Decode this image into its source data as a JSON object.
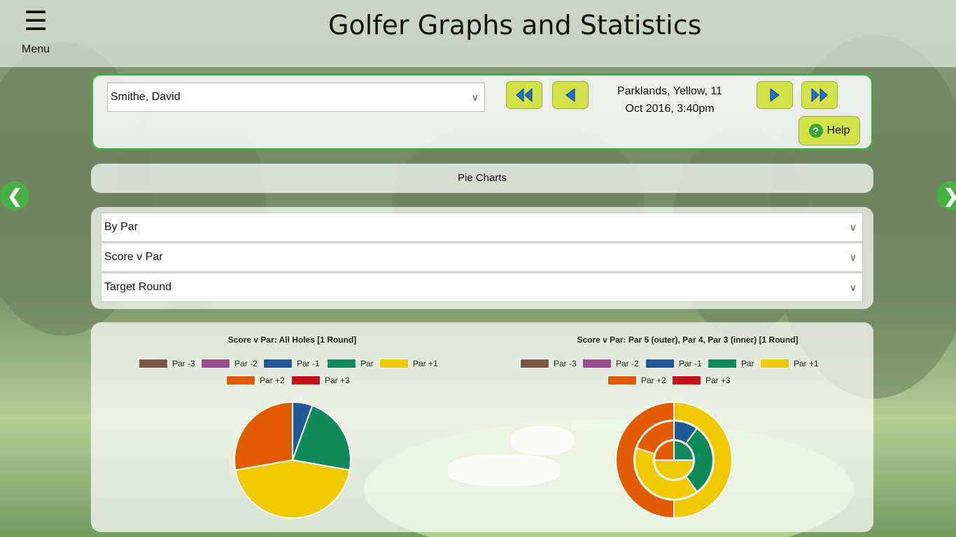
{
  "app": {
    "title": "Golfer Graphs and Statistics",
    "menu_glyph": "☰",
    "menu_label": "Menu"
  },
  "selector": {
    "golfer": "Smithe, David",
    "round_line1": "Parklands, Yellow, 11",
    "round_line2": "Oct 2016, 3:40pm",
    "help_label": "Help",
    "help_glyph": "?"
  },
  "section": {
    "title": "Pie Charts",
    "prev_glyph": "❮",
    "next_glyph": "❯"
  },
  "filters": {
    "group_by": "By Par",
    "measure": "Score v Par",
    "comparison": "Target Round"
  },
  "colors": {
    "accent_green": "#46b046",
    "button_lime": "#d2e24a",
    "button_blue": "#1e6fd6"
  },
  "legend": [
    {
      "label": "Par -3",
      "color": "#7b5446"
    },
    {
      "label": "Par -2",
      "color": "#9b4a94"
    },
    {
      "label": "Par -1",
      "color": "#1f5a96"
    },
    {
      "label": "Par",
      "color": "#108a5a"
    },
    {
      "label": "Par +1",
      "color": "#f0c800"
    },
    {
      "label": "Par +2",
      "color": "#e15c00"
    },
    {
      "label": "Par +3",
      "color": "#c8101e"
    }
  ],
  "chart_data": [
    {
      "type": "pie",
      "title": "Score v Par: All Holes [1 Round]",
      "labels": [
        "Par -1",
        "Par",
        "Par +1",
        "Par +2"
      ],
      "values": [
        1,
        4,
        8,
        5
      ]
    },
    {
      "type": "pie",
      "title": "Score v Par: Par 5 (outer), Par 4, Par 3 (inner) [1 Round]",
      "rings": [
        {
          "ring": "Par 5 (outer)",
          "labels": [
            "Par +1",
            "Par +2"
          ],
          "values": [
            2,
            2
          ]
        },
        {
          "ring": "Par 4",
          "labels": [
            "Par -1",
            "Par",
            "Par +1",
            "Par +2"
          ],
          "values": [
            1,
            3,
            4,
            2
          ]
        },
        {
          "ring": "Par 3 (inner)",
          "labels": [
            "Par",
            "Par +1",
            "Par +2"
          ],
          "values": [
            1,
            2,
            1
          ]
        }
      ]
    }
  ]
}
